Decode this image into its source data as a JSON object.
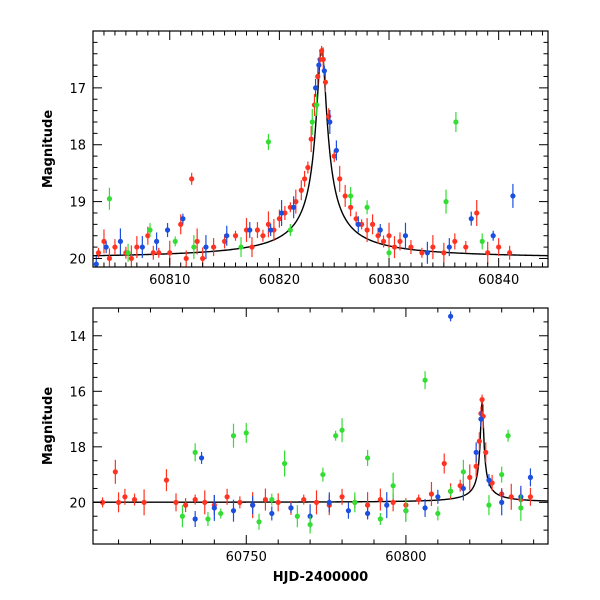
{
  "chart_data": [
    {
      "type": "scatter",
      "ylabel": "Magnitude",
      "xlabel": "",
      "xlim": [
        60803,
        60844.5
      ],
      "ylim": [
        20.15,
        16.0
      ],
      "y_inverted": true,
      "xticks": [
        60810,
        60820,
        60830,
        60840
      ],
      "yticks": [
        17,
        18,
        19,
        20
      ],
      "series": [
        {
          "color": "#ff3322",
          "points": [
            [
              60803.5,
              19.9
            ],
            [
              60804,
              19.7
            ],
            [
              60804.5,
              20.0
            ],
            [
              60805,
              19.8
            ],
            [
              60806,
              19.9
            ],
            [
              60806.5,
              20.0
            ],
            [
              60807,
              19.8
            ],
            [
              60808,
              19.6
            ],
            [
              60808.5,
              19.9
            ],
            [
              60809,
              19.9
            ],
            [
              60810,
              19.9
            ],
            [
              60811,
              19.4
            ],
            [
              60811.5,
              20.0
            ],
            [
              60812,
              18.6
            ],
            [
              60812.5,
              19.7
            ],
            [
              60813,
              20.0
            ],
            [
              60814,
              19.8
            ],
            [
              60815,
              19.7
            ],
            [
              60816,
              19.6
            ],
            [
              60817,
              19.5
            ],
            [
              60817.5,
              19.8
            ],
            [
              60818,
              19.5
            ],
            [
              60818.5,
              19.6
            ],
            [
              60819,
              19.4
            ],
            [
              60819.5,
              19.5
            ],
            [
              60820,
              19.3
            ],
            [
              60820.5,
              19.2
            ],
            [
              60821,
              19.1
            ],
            [
              60821.5,
              19.0
            ],
            [
              60822,
              18.8
            ],
            [
              60822.3,
              18.6
            ],
            [
              60822.6,
              18.4
            ],
            [
              60822.9,
              17.9
            ],
            [
              60823.2,
              17.3
            ],
            [
              60823.5,
              16.8
            ],
            [
              60823.7,
              16.5
            ],
            [
              60823.85,
              16.35
            ],
            [
              60824,
              16.5
            ],
            [
              60824.2,
              16.9
            ],
            [
              60824.5,
              17.5
            ],
            [
              60825,
              18.2
            ],
            [
              60825.5,
              18.6
            ],
            [
              60826,
              18.9
            ],
            [
              60826.5,
              19.1
            ],
            [
              60827,
              19.3
            ],
            [
              60827.5,
              19.4
            ],
            [
              60828,
              19.5
            ],
            [
              60828.5,
              19.4
            ],
            [
              60829,
              19.6
            ],
            [
              60829.5,
              19.7
            ],
            [
              60830,
              19.6
            ],
            [
              60830.5,
              19.8
            ],
            [
              60831,
              19.7
            ],
            [
              60832,
              19.8
            ],
            [
              60833,
              19.9
            ],
            [
              60834,
              19.8
            ],
            [
              60835,
              19.9
            ],
            [
              60836,
              19.7
            ],
            [
              60837,
              19.8
            ],
            [
              60838,
              19.2
            ],
            [
              60839,
              19.9
            ],
            [
              60840,
              19.8
            ],
            [
              60841,
              19.9
            ]
          ]
        },
        {
          "color": "#1a4fe0",
          "points": [
            [
              60803.3,
              20.1
            ],
            [
              60804.2,
              19.8
            ],
            [
              60805.5,
              19.7
            ],
            [
              60807.5,
              19.8
            ],
            [
              60808.8,
              19.7
            ],
            [
              60809.8,
              19.5
            ],
            [
              60811.2,
              19.3
            ],
            [
              60813.3,
              19.8
            ],
            [
              60815.2,
              19.6
            ],
            [
              60817.3,
              19.5
            ],
            [
              60819.2,
              19.5
            ],
            [
              60820.2,
              19.2
            ],
            [
              60821.3,
              19.1
            ],
            [
              60823.3,
              17.0
            ],
            [
              60823.6,
              16.6
            ],
            [
              60824.1,
              16.7
            ],
            [
              60824.6,
              17.6
            ],
            [
              60825.2,
              18.1
            ],
            [
              60827.2,
              19.4
            ],
            [
              60829.2,
              19.5
            ],
            [
              60831.5,
              19.6
            ],
            [
              60833.5,
              19.9
            ],
            [
              60835.5,
              19.8
            ],
            [
              60837.5,
              19.3
            ],
            [
              60839.5,
              19.6
            ],
            [
              60841.3,
              18.9
            ]
          ]
        },
        {
          "color": "#33dd33",
          "points": [
            [
              60804.5,
              18.95
            ],
            [
              60806.2,
              19.9
            ],
            [
              60808.2,
              19.5
            ],
            [
              60810.5,
              19.7
            ],
            [
              60812.2,
              19.8
            ],
            [
              60816.5,
              19.8
            ],
            [
              60819,
              17.95
            ],
            [
              60821,
              19.5
            ],
            [
              60823.0,
              17.6
            ],
            [
              60823.4,
              17.3
            ],
            [
              60826.5,
              18.9
            ],
            [
              60828,
              19.1
            ],
            [
              60830,
              19.9
            ],
            [
              60835.2,
              19.0
            ],
            [
              60836.1,
              17.6
            ],
            [
              60838.5,
              19.7
            ]
          ]
        }
      ],
      "model_curve_color": "#000000"
    },
    {
      "type": "scatter",
      "ylabel": "Magnitude",
      "xlabel": "HJD-2400000",
      "xlim": [
        60702,
        60844.5
      ],
      "ylim": [
        21.5,
        13.0
      ],
      "y_inverted": true,
      "xticks": [
        60750,
        60800
      ],
      "yticks": [
        14,
        16,
        18,
        20
      ],
      "series": [
        {
          "color": "#ff3322",
          "points": [
            [
              60705,
              20.0
            ],
            [
              60709,
              18.9
            ],
            [
              60710,
              20.0
            ],
            [
              60712,
              19.8
            ],
            [
              60715,
              19.9
            ],
            [
              60718,
              20.0
            ],
            [
              60725,
              19.2
            ],
            [
              60728,
              20.0
            ],
            [
              60731,
              20.1
            ],
            [
              60734,
              19.9
            ],
            [
              60737,
              20.0
            ],
            [
              60740,
              20.1
            ],
            [
              60744,
              19.8
            ],
            [
              60748,
              20.0
            ],
            [
              60752,
              20.1
            ],
            [
              60756,
              19.9
            ],
            [
              60760,
              20.0
            ],
            [
              60764,
              20.2
            ],
            [
              60768,
              19.9
            ],
            [
              60772,
              20.0
            ],
            [
              60776,
              20.1
            ],
            [
              60780,
              19.8
            ],
            [
              60784,
              20.0
            ],
            [
              60788,
              20.1
            ],
            [
              60792,
              19.9
            ],
            [
              60796,
              20.0
            ],
            [
              60800,
              20.1
            ],
            [
              60804,
              19.9
            ],
            [
              60808,
              19.7
            ],
            [
              60812,
              18.6
            ],
            [
              60814,
              19.6
            ],
            [
              60817,
              19.4
            ],
            [
              60820,
              19.1
            ],
            [
              60822,
              18.7
            ],
            [
              60823,
              17.8
            ],
            [
              60823.5,
              16.8
            ],
            [
              60823.85,
              16.3
            ],
            [
              60824.2,
              16.9
            ],
            [
              60825,
              18.2
            ],
            [
              60827,
              19.3
            ],
            [
              60830,
              19.7
            ],
            [
              60833,
              19.8
            ],
            [
              60836,
              19.9
            ],
            [
              60839,
              19.8
            ]
          ]
        },
        {
          "color": "#1a4fe0",
          "points": [
            [
              60734,
              20.6
            ],
            [
              60736,
              18.4
            ],
            [
              60740,
              20.2
            ],
            [
              60746,
              20.3
            ],
            [
              60752,
              20.1
            ],
            [
              60758,
              20.4
            ],
            [
              60764,
              20.2
            ],
            [
              60770,
              20.5
            ],
            [
              60776,
              20.0
            ],
            [
              60782,
              20.3
            ],
            [
              60788,
              20.4
            ],
            [
              60794,
              20.1
            ],
            [
              60800,
              20.3
            ],
            [
              60806,
              20.2
            ],
            [
              60810,
              19.8
            ],
            [
              60814,
              13.3
            ],
            [
              60818,
              19.5
            ],
            [
              60822,
              18.2
            ],
            [
              60823.5,
              17.0
            ],
            [
              60826,
              19.2
            ],
            [
              60830,
              20.0
            ],
            [
              60836,
              19.8
            ],
            [
              60839,
              19.1
            ]
          ]
        },
        {
          "color": "#33dd33",
          "points": [
            [
              60730,
              20.5
            ],
            [
              60734,
              18.2
            ],
            [
              60738,
              20.6
            ],
            [
              60742,
              20.4
            ],
            [
              60746,
              17.6
            ],
            [
              60750,
              17.5
            ],
            [
              60754,
              20.7
            ],
            [
              60758,
              19.9
            ],
            [
              60762,
              18.6
            ],
            [
              60766,
              20.5
            ],
            [
              60770,
              20.8
            ],
            [
              60774,
              19.0
            ],
            [
              60778,
              17.6
            ],
            [
              60780,
              17.4
            ],
            [
              60784,
              20.0
            ],
            [
              60788,
              18.4
            ],
            [
              60792,
              20.6
            ],
            [
              60796,
              19.4
            ],
            [
              60800,
              20.3
            ],
            [
              60806,
              15.6
            ],
            [
              60810,
              20.4
            ],
            [
              60814,
              19.6
            ],
            [
              60818,
              18.9
            ],
            [
              60826,
              20.1
            ],
            [
              60830,
              19.0
            ],
            [
              60832,
              17.6
            ],
            [
              60836,
              20.2
            ]
          ]
        }
      ],
      "model_curve_color": "#000000"
    }
  ]
}
